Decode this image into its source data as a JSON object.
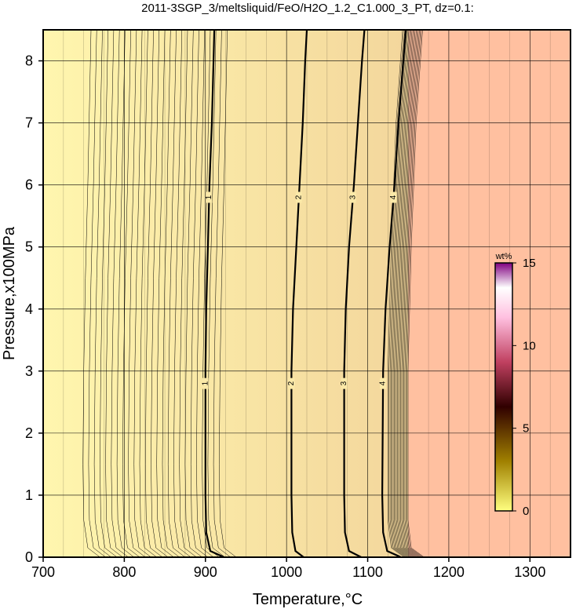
{
  "chart_data": {
    "type": "contour",
    "title": "2011-3SGP_3/meltsliquid/FeO/H2O_1.2_C1.000_3_PT, dz=0.1:",
    "xlabel": "Temperature,°C",
    "ylabel": "Pressure,x100MPa",
    "xlim": [
      700,
      1350
    ],
    "ylim": [
      0,
      8.5
    ],
    "x_ticks": [
      700,
      800,
      900,
      1000,
      1100,
      1200,
      1300
    ],
    "y_ticks": [
      0,
      1,
      2,
      3,
      4,
      5,
      6,
      7,
      8
    ],
    "grid": true,
    "contour_interval": 0.1,
    "major_contours": [
      {
        "label": "1",
        "value": 1,
        "path": [
          [
            923,
            0
          ],
          [
            906,
            0.1
          ],
          [
            901,
            0.4
          ],
          [
            900,
            1
          ],
          [
            900,
            3
          ],
          [
            901,
            4
          ],
          [
            903,
            5
          ],
          [
            905,
            6
          ],
          [
            908,
            7
          ],
          [
            910,
            8
          ],
          [
            911,
            8.5
          ]
        ]
      },
      {
        "label": "2",
        "value": 2,
        "path": [
          [
            1021,
            0
          ],
          [
            1011,
            0.1
          ],
          [
            1007,
            0.4
          ],
          [
            1006,
            1
          ],
          [
            1006,
            3
          ],
          [
            1008,
            4
          ],
          [
            1012,
            5
          ],
          [
            1016,
            6
          ],
          [
            1020,
            7
          ],
          [
            1023,
            8
          ],
          [
            1025,
            8.5
          ]
        ]
      },
      {
        "label": "3",
        "value": 3,
        "path": [
          [
            1092,
            0
          ],
          [
            1077,
            0.1
          ],
          [
            1072,
            0.4
          ],
          [
            1071,
            1
          ],
          [
            1071,
            3
          ],
          [
            1073,
            4
          ],
          [
            1077,
            5
          ],
          [
            1083,
            6
          ],
          [
            1088,
            7
          ],
          [
            1093,
            8
          ],
          [
            1096,
            8.5
          ]
        ]
      },
      {
        "label": "4",
        "value": 4,
        "path": [
          [
            1141,
            0
          ],
          [
            1124,
            0.1
          ],
          [
            1119,
            0.4
          ],
          [
            1118,
            1
          ],
          [
            1119,
            3
          ],
          [
            1122,
            4
          ],
          [
            1127,
            5
          ],
          [
            1133,
            6
          ],
          [
            1138,
            7
          ],
          [
            1144,
            8
          ],
          [
            1147,
            8.5
          ]
        ]
      }
    ],
    "minor_contours_low": {
      "t0_at_p0": [
        750,
        757,
        764,
        771,
        778,
        785,
        792,
        799,
        806,
        813,
        820,
        827,
        834,
        841,
        848,
        855,
        862,
        869,
        876,
        883,
        890,
        897,
        904,
        911,
        918
      ]
    },
    "saturation_boundary_T": 1150,
    "region_colors": {
      "melt": "#FEEFA5",
      "melt_hot": "#F5DDA0",
      "above_liquidus": "#FFC0A0"
    },
    "colorbar": {
      "unit": "wt%",
      "min": 0,
      "max": 15,
      "ticks": [
        0,
        5,
        10,
        15
      ],
      "colors": [
        "#ffff80",
        "#a08000",
        "#300000",
        "#c04060",
        "#ffc0e0",
        "#ffffff",
        "#800080"
      ]
    }
  }
}
